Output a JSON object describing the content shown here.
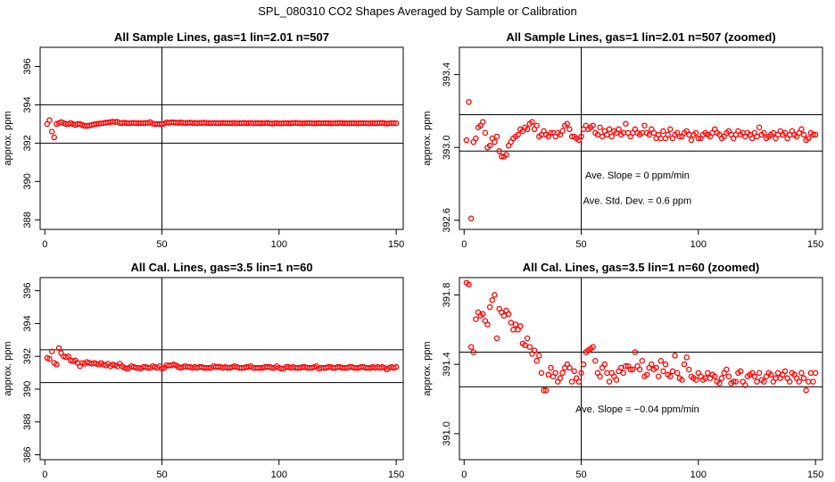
{
  "page": {
    "title": "SPL_080310  CO2 Shapes Averaged by Sample or Calibration"
  },
  "chart_data": [
    {
      "type": "scatter",
      "title": "All Sample Lines, gas=1 lin=2.01 n=507",
      "ylabel": "approx. ppm",
      "xlim": [
        -2,
        153
      ],
      "ylim": [
        387.5,
        397
      ],
      "xticks": [
        0,
        50,
        100,
        150
      ],
      "xtick_labels": [
        "0",
        "50",
        "100",
        "150"
      ],
      "yticks": [
        388,
        390,
        392,
        394,
        396
      ],
      "ytick_labels": [
        "388",
        "390",
        "392",
        "394",
        "396"
      ],
      "hlines": [
        392.0,
        394.0
      ],
      "vlines": [
        50
      ],
      "annotations": [],
      "series": [
        {
          "values": [
            393.0,
            393.2,
            392.6,
            392.3,
            393.0,
            393.05,
            393.1,
            393.05,
            393.0,
            393.0,
            393.05,
            393.0,
            392.95,
            393.0,
            393.0,
            392.95,
            392.9,
            392.9,
            392.92,
            392.95,
            392.98,
            393.0,
            393.02,
            393.03,
            393.05,
            393.07,
            393.08,
            393.1,
            393.12,
            393.1,
            393.12,
            393.05,
            393.05,
            393.07,
            393.05,
            393.04,
            393.05,
            393.06,
            393.04,
            393.05,
            393.05,
            393.04,
            393.06,
            393.05,
            393.1,
            393.02,
            393.0,
            393.0,
            393.0,
            393.0,
            393.02,
            393.08,
            393.06,
            393.09,
            393.08,
            393.07,
            393.06,
            393.08,
            393.06,
            393.05,
            393.06,
            393.07,
            393.05,
            393.06,
            393.04,
            393.06,
            393.05,
            393.07,
            393.05,
            393.05,
            393.04,
            393.06,
            393.05,
            393.05,
            393.04,
            393.06,
            393.05,
            393.05,
            393.04,
            393.05,
            393.06,
            393.03,
            393.05,
            393.04,
            393.06,
            393.04,
            393.05,
            393.06,
            393.03,
            393.04,
            393.05,
            393.04,
            393.04,
            393.05,
            393.06,
            393.04,
            393.02,
            393.04,
            393.05,
            393.03,
            393.03,
            393.04,
            393.05,
            393.04,
            393.04,
            393.05,
            393.06,
            393.05,
            393.04,
            393.03,
            393.04,
            393.05,
            393.05,
            393.04,
            393.03,
            393.04,
            393.05,
            393.04,
            393.05,
            393.04,
            393.05,
            393.04,
            393.03,
            393.05,
            393.04,
            393.06,
            393.04,
            393.05,
            393.03,
            393.04,
            393.04,
            393.05,
            393.03,
            393.04,
            393.05,
            393.04,
            393.05,
            393.03,
            393.04,
            393.05,
            393.04,
            393.04,
            393.05,
            393.06,
            393.04,
            393.02,
            393.03,
            393.05,
            393.04,
            393.04
          ]
        }
      ]
    },
    {
      "type": "scatter",
      "title": "All Sample Lines, gas=1 lin=2.01 n=507 (zoomed)",
      "ylabel": "approx. ppm",
      "xlim": [
        -2,
        153
      ],
      "ylim": [
        392.55,
        393.55
      ],
      "xticks": [
        0,
        50,
        100,
        150
      ],
      "xtick_labels": [
        "0",
        "50",
        "100",
        "150"
      ],
      "yticks": [
        392.6,
        393.0,
        393.4
      ],
      "ytick_labels": [
        "392.6",
        "393.0",
        "393.4"
      ],
      "hlines": [
        392.98,
        393.18
      ],
      "vlines": [
        50
      ],
      "annotations": [
        "Ave. Slope =  0  ppm/min",
        "Ave. Std. Dev. =  0.6  ppm"
      ],
      "series": [
        {
          "values": [
            393.04,
            393.25,
            392.61,
            393.03,
            393.05,
            393.11,
            393.12,
            393.14,
            393.08,
            393.0,
            393.01,
            393.05,
            393.03,
            393.06,
            392.98,
            392.95,
            392.95,
            392.96,
            393.01,
            393.03,
            393.05,
            393.06,
            393.07,
            393.1,
            393.09,
            393.11,
            393.1,
            393.13,
            393.14,
            393.1,
            393.12,
            393.06,
            393.07,
            393.09,
            393.07,
            393.06,
            393.08,
            393.08,
            393.06,
            393.08,
            393.07,
            393.09,
            393.12,
            393.13,
            393.1,
            393.06,
            393.06,
            393.05,
            393.04,
            393.06,
            393.1,
            393.12,
            393.1,
            393.11,
            393.12,
            393.08,
            393.07,
            393.11,
            393.06,
            393.09,
            393.07,
            393.1,
            393.06,
            393.09,
            393.08,
            393.1,
            393.07,
            393.08,
            393.13,
            393.08,
            393.06,
            393.08,
            393.1,
            393.08,
            393.07,
            393.08,
            393.12,
            393.08,
            393.07,
            393.1,
            393.08,
            393.05,
            393.07,
            393.05,
            393.09,
            393.05,
            393.07,
            393.1,
            393.05,
            393.07,
            393.08,
            393.06,
            393.06,
            393.08,
            393.09,
            393.07,
            393.04,
            393.07,
            393.08,
            393.05,
            393.05,
            393.07,
            393.08,
            393.07,
            393.06,
            393.08,
            393.1,
            393.08,
            393.07,
            393.05,
            393.06,
            393.08,
            393.09,
            393.07,
            393.05,
            393.07,
            393.09,
            393.07,
            393.08,
            393.06,
            393.08,
            393.07,
            393.05,
            393.08,
            393.06,
            393.11,
            393.07,
            393.08,
            393.05,
            393.06,
            393.07,
            393.08,
            393.05,
            393.07,
            393.09,
            393.07,
            393.08,
            393.05,
            393.07,
            393.09,
            393.07,
            393.06,
            393.08,
            393.1,
            393.07,
            393.04,
            393.05,
            393.08,
            393.07,
            393.07
          ]
        }
      ]
    },
    {
      "type": "scatter",
      "title": "All Cal. Lines, gas=3.5 lin=1 n=60",
      "ylabel": "approx. ppm",
      "xlim": [
        -2,
        153
      ],
      "ylim": [
        385.7,
        396.8
      ],
      "xticks": [
        0,
        50,
        100,
        150
      ],
      "xtick_labels": [
        "0",
        "50",
        "100",
        "150"
      ],
      "yticks": [
        386,
        388,
        390,
        392,
        394,
        396
      ],
      "ytick_labels": [
        "386",
        "388",
        "390",
        "392",
        "394",
        "396"
      ],
      "hlines": [
        390.4,
        392.4
      ],
      "vlines": [
        50
      ],
      "annotations": [],
      "series": [
        {
          "values": [
            391.9,
            391.85,
            392.3,
            391.6,
            391.5,
            392.5,
            392.2,
            392.0,
            391.95,
            392.0,
            391.75,
            391.7,
            391.75,
            391.6,
            391.4,
            391.6,
            391.55,
            391.65,
            391.6,
            391.55,
            391.6,
            391.55,
            391.5,
            391.6,
            391.5,
            391.45,
            391.55,
            391.4,
            391.5,
            391.45,
            391.4,
            391.55,
            391.4,
            391.3,
            391.25,
            391.3,
            391.4,
            391.35,
            391.3,
            391.3,
            391.25,
            391.35,
            391.35,
            391.3,
            391.3,
            391.4,
            391.35,
            391.3,
            391.4,
            391.25,
            391.3,
            391.45,
            391.45,
            391.45,
            391.5,
            391.45,
            391.35,
            391.3,
            391.35,
            391.4,
            391.35,
            391.35,
            391.3,
            391.35,
            391.3,
            391.35,
            391.35,
            391.3,
            391.3,
            391.3,
            391.3,
            391.4,
            391.35,
            391.35,
            391.35,
            391.3,
            391.35,
            391.3,
            391.3,
            391.35,
            391.4,
            391.35,
            391.3,
            391.3,
            391.3,
            391.35,
            391.35,
            391.4,
            391.3,
            391.3,
            391.3,
            391.3,
            391.3,
            391.35,
            391.35,
            391.35,
            391.3,
            391.3,
            391.4,
            391.3,
            391.25,
            391.25,
            391.35,
            391.35,
            391.3,
            391.35,
            391.3,
            391.3,
            391.3,
            391.35,
            391.35,
            391.3,
            391.3,
            391.3,
            391.35,
            391.4,
            391.25,
            391.3,
            391.3,
            391.3,
            391.35,
            391.35,
            391.3,
            391.3,
            391.35,
            391.35,
            391.3,
            391.3,
            391.3,
            391.35,
            391.35,
            391.3,
            391.3,
            391.3,
            391.35,
            391.35,
            391.3,
            391.3,
            391.3,
            391.35,
            391.3,
            391.35,
            391.3,
            391.35,
            391.3,
            391.2,
            391.3,
            391.35,
            391.3,
            391.35
          ]
        }
      ]
    },
    {
      "type": "scatter",
      "title": "All Cal. Lines, gas=3.5 lin=1 n=60 (zoomed)",
      "ylabel": "approx. ppm",
      "xlim": [
        -2,
        153
      ],
      "ylim": [
        390.85,
        391.9
      ],
      "xticks": [
        0,
        50,
        100,
        150
      ],
      "xtick_labels": [
        "0",
        "50",
        "100",
        "150"
      ],
      "yticks": [
        391.0,
        391.4,
        391.8
      ],
      "ytick_labels": [
        "391.0",
        "391.4",
        "391.8"
      ],
      "hlines": [
        391.27,
        391.47
      ],
      "vlines": [
        50
      ],
      "annotations": [
        "Ave. Slope = −0.04  ppm/min"
      ],
      "series": [
        {
          "values": [
            391.87,
            391.86,
            391.5,
            391.47,
            391.66,
            391.7,
            391.68,
            391.69,
            391.65,
            391.63,
            391.73,
            391.77,
            391.8,
            391.55,
            391.72,
            391.7,
            391.68,
            391.71,
            391.69,
            391.64,
            391.6,
            391.63,
            391.6,
            391.62,
            391.52,
            391.51,
            391.55,
            391.5,
            391.46,
            391.48,
            391.42,
            391.45,
            391.35,
            391.25,
            391.25,
            391.34,
            391.38,
            391.33,
            391.35,
            391.3,
            391.32,
            391.35,
            391.38,
            391.4,
            391.38,
            391.3,
            391.36,
            391.32,
            391.3,
            391.35,
            391.4,
            391.47,
            391.48,
            391.49,
            391.5,
            391.42,
            391.35,
            391.33,
            391.38,
            391.4,
            391.35,
            391.3,
            391.35,
            391.33,
            391.31,
            391.36,
            391.38,
            391.35,
            391.39,
            391.39,
            391.37,
            391.37,
            391.47,
            391.39,
            391.37,
            391.42,
            391.33,
            391.34,
            391.38,
            391.4,
            391.37,
            391.38,
            391.33,
            391.42,
            391.36,
            391.4,
            391.34,
            391.33,
            391.36,
            391.45,
            391.35,
            391.32,
            391.31,
            391.4,
            391.44,
            391.37,
            391.33,
            391.32,
            391.31,
            391.35,
            391.33,
            391.31,
            391.32,
            391.35,
            391.32,
            391.34,
            391.33,
            391.3,
            391.29,
            391.32,
            391.35,
            391.37,
            391.33,
            391.29,
            391.3,
            391.3,
            391.35,
            391.36,
            391.3,
            391.28,
            391.33,
            391.34,
            391.35,
            391.33,
            391.3,
            391.35,
            391.31,
            391.3,
            391.33,
            391.35,
            391.34,
            391.3,
            391.32,
            391.35,
            391.32,
            391.34,
            391.36,
            391.32,
            391.3,
            391.35,
            391.34,
            391.32,
            391.3,
            391.35,
            391.32,
            391.25,
            391.3,
            391.35,
            391.3,
            391.35
          ]
        }
      ]
    }
  ]
}
